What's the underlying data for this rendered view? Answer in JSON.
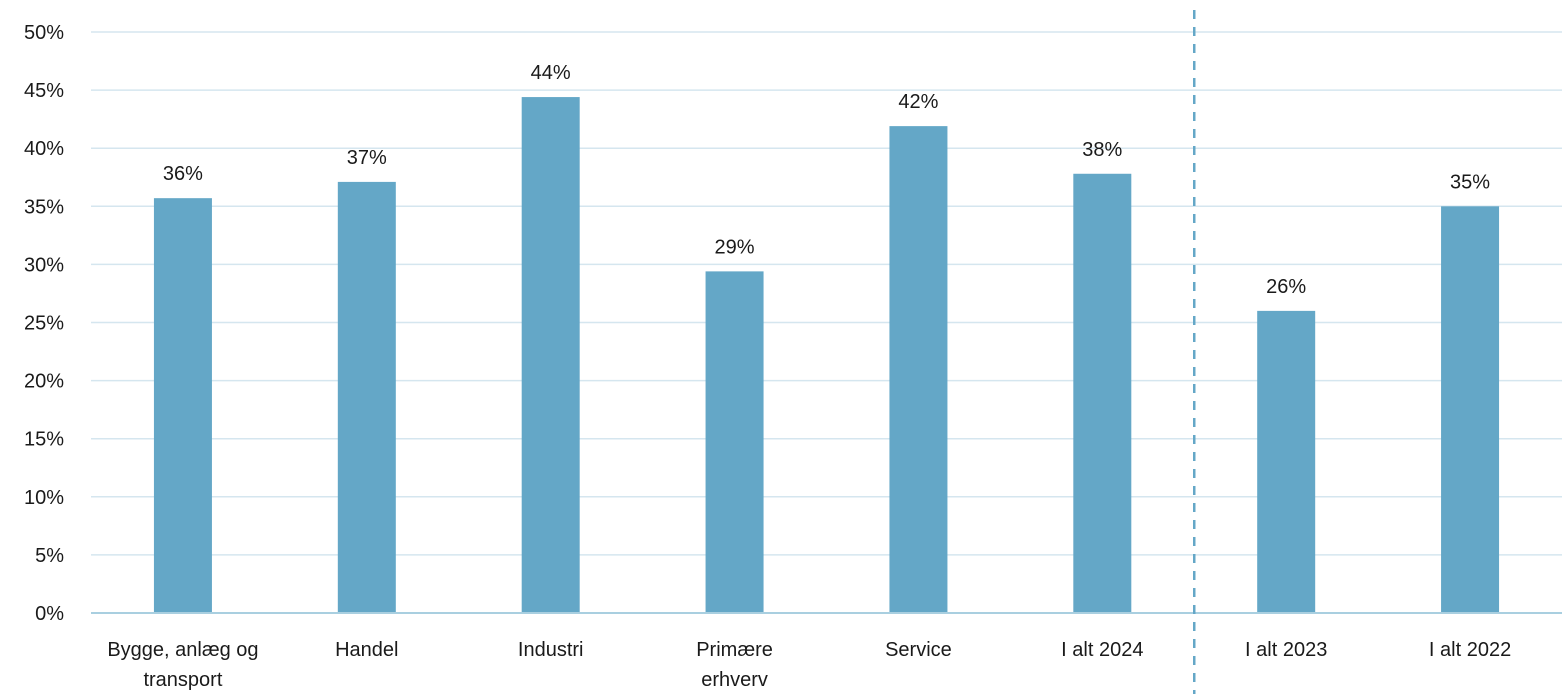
{
  "chart_data": {
    "type": "bar",
    "categories": [
      "Bygge, anlæg og transport",
      "Handel",
      "Industri",
      "Primære erhverv",
      "Service",
      "I alt 2024",
      "I alt 2023",
      "I alt 2022"
    ],
    "category_lines": [
      [
        "Bygge, anlæg og",
        "transport"
      ],
      [
        "Handel"
      ],
      [
        "Industri"
      ],
      [
        "Primære",
        "erhverv"
      ],
      [
        "Service"
      ],
      [
        "I alt 2024"
      ],
      [
        "I alt 2023"
      ],
      [
        "I alt 2022"
      ]
    ],
    "values": [
      35.7,
      37.1,
      44.4,
      29.4,
      41.9,
      37.8,
      26.0,
      35.0
    ],
    "data_labels": [
      "36%",
      "37%",
      "44%",
      "29%",
      "42%",
      "38%",
      "26%",
      "35%"
    ],
    "ylim": [
      0,
      50
    ],
    "yticks": [
      0,
      5,
      10,
      15,
      20,
      25,
      30,
      35,
      40,
      45,
      50
    ],
    "ytick_labels": [
      "0%",
      "5%",
      "10%",
      "15%",
      "20%",
      "25%",
      "30%",
      "35%",
      "40%",
      "45%",
      "50%"
    ],
    "title": "",
    "xlabel": "",
    "ylabel": "",
    "grid": true,
    "legend": "none",
    "separator_after_category": 5,
    "bar_color": "#64a7c7",
    "grid_color": "#d5e6ef",
    "axis_color": "#a9cfe0",
    "separator_color": "#64a7c7"
  }
}
